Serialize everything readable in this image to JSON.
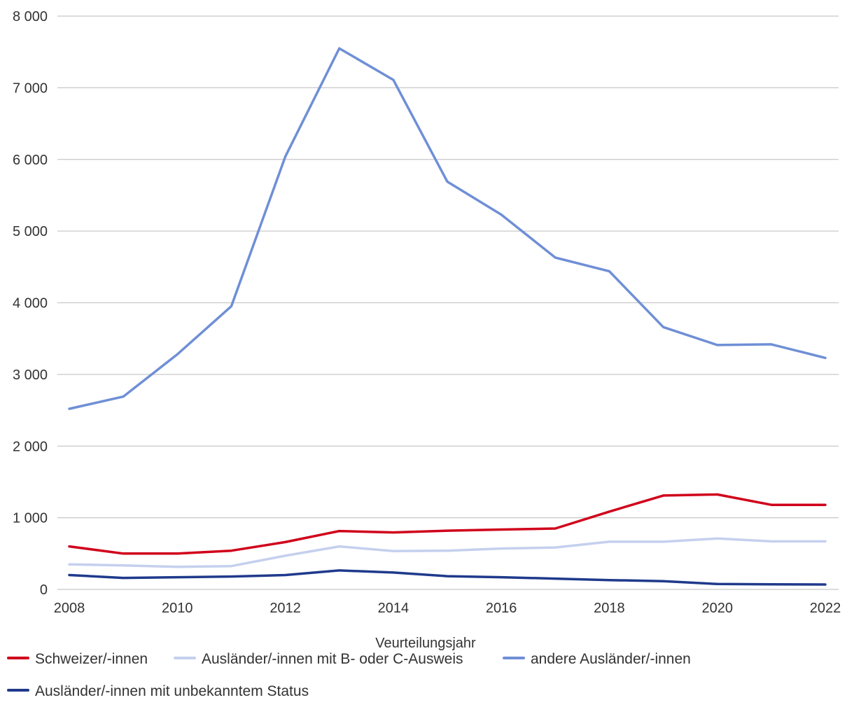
{
  "chart_data": {
    "type": "line",
    "title": "",
    "xlabel": "Veurteilungsjahr",
    "ylabel": "",
    "x": [
      2008,
      2009,
      2010,
      2011,
      2012,
      2013,
      2014,
      2015,
      2016,
      2017,
      2018,
      2019,
      2020,
      2021,
      2022
    ],
    "xticks": [
      "2008",
      "2010",
      "2012",
      "2014",
      "2016",
      "2018",
      "2020",
      "2022"
    ],
    "yticks": [
      "0",
      "1 000",
      "2 000",
      "3 000",
      "4 000",
      "5 000",
      "6 000",
      "7 000",
      "8 000"
    ],
    "ylim": [
      0,
      8000
    ],
    "grid": true,
    "legend_position": "bottom-left",
    "series": [
      {
        "name": "Schweizer/-innen",
        "color": "#d0021b",
        "values": [
          600,
          500,
          500,
          540,
          660,
          815,
          795,
          820,
          835,
          850,
          1085,
          1310,
          1325,
          1180,
          1180
        ]
      },
      {
        "name": "Ausländer/-innen mit B- oder C-Ausweis",
        "color": "#c5d0ee",
        "values": [
          350,
          335,
          315,
          325,
          470,
          600,
          535,
          540,
          570,
          585,
          665,
          665,
          710,
          670,
          670
        ]
      },
      {
        "name": "andere Ausländer/-innen",
        "color": "#6f8fd6",
        "values": [
          2520,
          2690,
          3280,
          3950,
          6040,
          7550,
          7110,
          5690,
          5230,
          4630,
          4440,
          3660,
          3410,
          3420,
          3230
        ]
      },
      {
        "name": "Ausländer/-innen mit unbekanntem Status",
        "color": "#1f3a8c",
        "values": [
          200,
          160,
          170,
          180,
          200,
          265,
          235,
          185,
          170,
          150,
          130,
          115,
          75,
          70,
          68
        ]
      }
    ]
  }
}
